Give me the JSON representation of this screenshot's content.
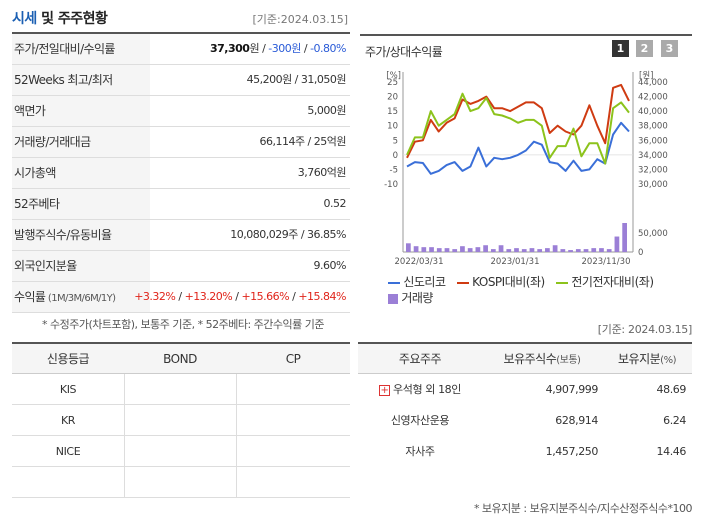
{
  "header": {
    "title_main": "시세",
    "title_rest": " 및 주주현황",
    "date": "[기준:2024.03.15]"
  },
  "info": [
    {
      "label": "주가/전일대비/수익률",
      "parts": [
        {
          "t": "37,300",
          "c": "bold"
        },
        {
          "t": "원 / ",
          "c": ""
        },
        {
          "t": "-300원",
          "c": "blue"
        },
        {
          "t": " / ",
          "c": ""
        },
        {
          "t": "-0.80%",
          "c": "blue"
        }
      ]
    },
    {
      "label": "52Weeks 최고/최저",
      "parts": [
        {
          "t": "45,200원 / 31,050원",
          "c": ""
        }
      ]
    },
    {
      "label": "액면가",
      "parts": [
        {
          "t": "5,000원",
          "c": ""
        }
      ]
    },
    {
      "label": "거래량/거래대금",
      "parts": [
        {
          "t": "66,114주 / 25억원",
          "c": ""
        }
      ]
    },
    {
      "label": "시가총액",
      "parts": [
        {
          "t": "3,760억원",
          "c": ""
        }
      ]
    },
    {
      "label": "52주베타",
      "parts": [
        {
          "t": "0.52",
          "c": ""
        }
      ]
    },
    {
      "label": "발행주식수/유동비율",
      "parts": [
        {
          "t": "10,080,029주 / 36.85%",
          "c": ""
        }
      ]
    },
    {
      "label": "외국인지분율",
      "parts": [
        {
          "t": "9.60%",
          "c": ""
        }
      ]
    },
    {
      "label": "수익률",
      "label_small": " (1M/3M/6M/1Y)",
      "parts": [
        {
          "t": "+3.32%",
          "c": "red"
        },
        {
          "t": " / ",
          "c": ""
        },
        {
          "t": "+13.20%",
          "c": "red"
        },
        {
          "t": " / ",
          "c": ""
        },
        {
          "t": "+15.66%",
          "c": "red"
        },
        {
          "t": " / ",
          "c": ""
        },
        {
          "t": "+15.84%",
          "c": "red"
        }
      ]
    }
  ],
  "note_left": "* 수정주가(차트포함), 보통주 기준, * 52주베타: 주간수익률 기준",
  "chart_panel": {
    "title": "주가/상대수익률",
    "pages": [
      "1",
      "2",
      "3"
    ],
    "legend": [
      "신도리코",
      "KOSPI대비(좌)",
      "전기전자대비(좌)",
      "거래량"
    ]
  },
  "chart_data": {
    "type": "line",
    "y_left_unit": "[%]",
    "y_right_unit": "[원]",
    "y_left_ticks": [
      "25",
      "20",
      "15",
      "10",
      "5",
      "0",
      "-5",
      "-10"
    ],
    "y_right_ticks": [
      "44,000",
      "42,000",
      "40,000",
      "38,000",
      "36,000",
      "34,000",
      "32,000",
      "30,000"
    ],
    "volume_ticks": [
      "50,000",
      "0"
    ],
    "x_ticks": [
      "2022/03/31",
      "2023/01/31",
      "2023/11/30"
    ],
    "ylim_left": [
      -10,
      25
    ],
    "series": [
      {
        "name": "신도리코",
        "color": "#3a6fd8",
        "values": [
          -4,
          -2.5,
          -2.8,
          -6.5,
          -5.5,
          -3.5,
          -2.5,
          -5.5,
          -4,
          2.5,
          -4,
          -1,
          -1.5,
          -1,
          0,
          1.5,
          4.5,
          3.5,
          -2.5,
          -3,
          -5.5,
          -2,
          -5.5,
          -5,
          -1.5,
          -3,
          7,
          11,
          8
        ]
      },
      {
        "name": "KOSPI대비(좌)",
        "color": "#cf3b12",
        "values": [
          -1,
          4.5,
          5,
          12,
          8,
          11,
          12.5,
          19,
          17.5,
          18.5,
          20,
          16,
          16,
          15,
          16.5,
          18,
          18,
          16,
          7.5,
          10,
          8,
          7,
          10,
          17,
          10,
          4,
          23,
          24,
          18.5
        ]
      },
      {
        "name": "전기전자대비(좌)",
        "color": "#8cc31c",
        "values": [
          0,
          6,
          6,
          15,
          10,
          12,
          14,
          21,
          15,
          16,
          19.5,
          14,
          13.5,
          12.5,
          11,
          12,
          12,
          10,
          -1,
          3,
          3,
          9,
          -0.5,
          4,
          4,
          -3,
          16,
          18,
          14.5
        ]
      }
    ],
    "volume": [
      9,
      6,
      5,
      5,
      4,
      4,
      3,
      6,
      4,
      5,
      7,
      3,
      7,
      3,
      4,
      3,
      4,
      3,
      4,
      7,
      3,
      2,
      3,
      3,
      4,
      4,
      3,
      16,
      30
    ]
  },
  "right_date": "[기준: 2024.03.15]",
  "credit": {
    "headers": [
      "신용등급",
      "BOND",
      "CP"
    ],
    "rows": [
      [
        "KIS",
        "",
        ""
      ],
      [
        "KR",
        "",
        ""
      ],
      [
        "NICE",
        "",
        ""
      ],
      [
        "",
        "",
        ""
      ]
    ]
  },
  "holders": {
    "headers": [
      "주요주주",
      "보유주식수",
      "(보통)",
      "보유지분",
      "(%)"
    ],
    "rows": [
      {
        "name": "우석형 외 18인",
        "plus": "+",
        "shares": "4,907,999",
        "pct": "48.69"
      },
      {
        "name": "신영자산운용",
        "plus": "",
        "shares": "628,914",
        "pct": "6.24"
      },
      {
        "name": "자사주",
        "plus": "",
        "shares": "1,457,250",
        "pct": "14.46"
      }
    ]
  },
  "note_bottom": "* 보유지분 : 보유지분주식수/지수산정주식수*100"
}
